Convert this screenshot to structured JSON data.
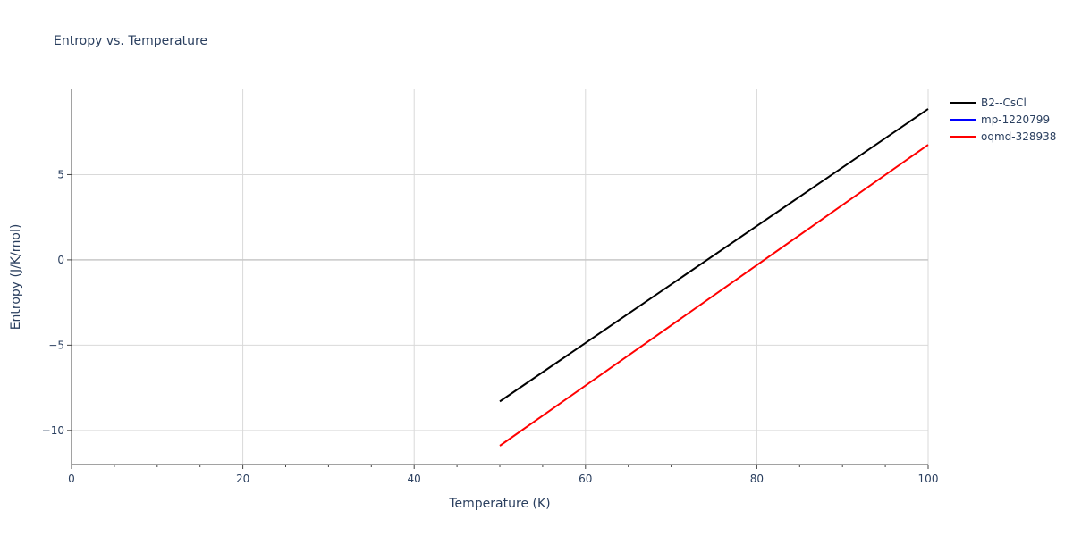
{
  "chart_data": {
    "type": "line",
    "title": "Entropy vs. Temperature",
    "xlabel": "Temperature (K)",
    "ylabel": "Entropy (J/K/mol)",
    "xlim": [
      0,
      100
    ],
    "ylim": [
      -12,
      10
    ],
    "x_ticks": [
      0,
      20,
      40,
      60,
      80,
      100
    ],
    "y_ticks": [
      -10,
      -5,
      0,
      5
    ],
    "y_tick_labels": [
      "−10",
      "−5",
      "0",
      "5"
    ],
    "grid": true,
    "legend_position": "top-right",
    "series": [
      {
        "name": "B2--CsCl",
        "color": "#000000",
        "x": [
          50,
          100
        ],
        "y": [
          -8.3,
          8.85
        ]
      },
      {
        "name": "mp-1220799",
        "color": "#0000ff",
        "x": [],
        "y": []
      },
      {
        "name": "oqmd-328938",
        "color": "#ff0000",
        "x": [
          50,
          100
        ],
        "y": [
          -10.9,
          6.75
        ]
      }
    ]
  }
}
